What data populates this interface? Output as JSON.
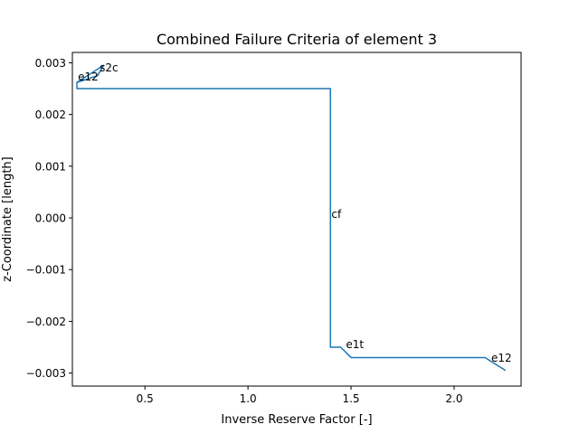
{
  "chart_data": {
    "type": "line",
    "title": "Combined Failure Criteria of element 3",
    "xlabel": "Inverse Reserve Factor [-]",
    "ylabel": "z-Coordinate [length]",
    "xlim": [
      0.148,
      2.325
    ],
    "ylim": [
      -0.0032515,
      0.0032
    ],
    "xticks": [
      0.5,
      1.0,
      1.5,
      2.0
    ],
    "xtick_labels": [
      "0.5",
      "1.0",
      "1.5",
      "2.0"
    ],
    "yticks": [
      -0.003,
      -0.002,
      -0.001,
      0.0,
      0.001,
      0.002,
      0.003
    ],
    "ytick_labels": [
      "−0.003",
      "−0.002",
      "−0.001",
      "0.000",
      "0.001",
      "0.002",
      "0.003"
    ],
    "grid": false,
    "series": [
      {
        "color": "#1f77b4",
        "x": [
          0.17,
          0.17,
          0.27,
          0.3,
          0.17,
          0.17,
          1.4,
          1.4,
          1.4,
          1.45,
          1.5,
          2.15,
          2.25
        ],
        "y": [
          0.0025,
          0.00262,
          0.00275,
          0.00295,
          0.00262,
          0.0025,
          0.0025,
          0.0,
          -0.0025,
          -0.0025,
          -0.0027,
          -0.0027,
          -0.00295
        ]
      }
    ],
    "annotations": [
      {
        "text": "e12",
        "x": 0.175,
        "y": 0.00266
      },
      {
        "text": "s2c",
        "x": 0.28,
        "y": 0.00283
      },
      {
        "text": "cf",
        "x": 1.405,
        "y": 0.0
      },
      {
        "text": "e1t",
        "x": 1.475,
        "y": -0.00252
      },
      {
        "text": "e12",
        "x": 2.18,
        "y": -0.00278
      }
    ]
  }
}
